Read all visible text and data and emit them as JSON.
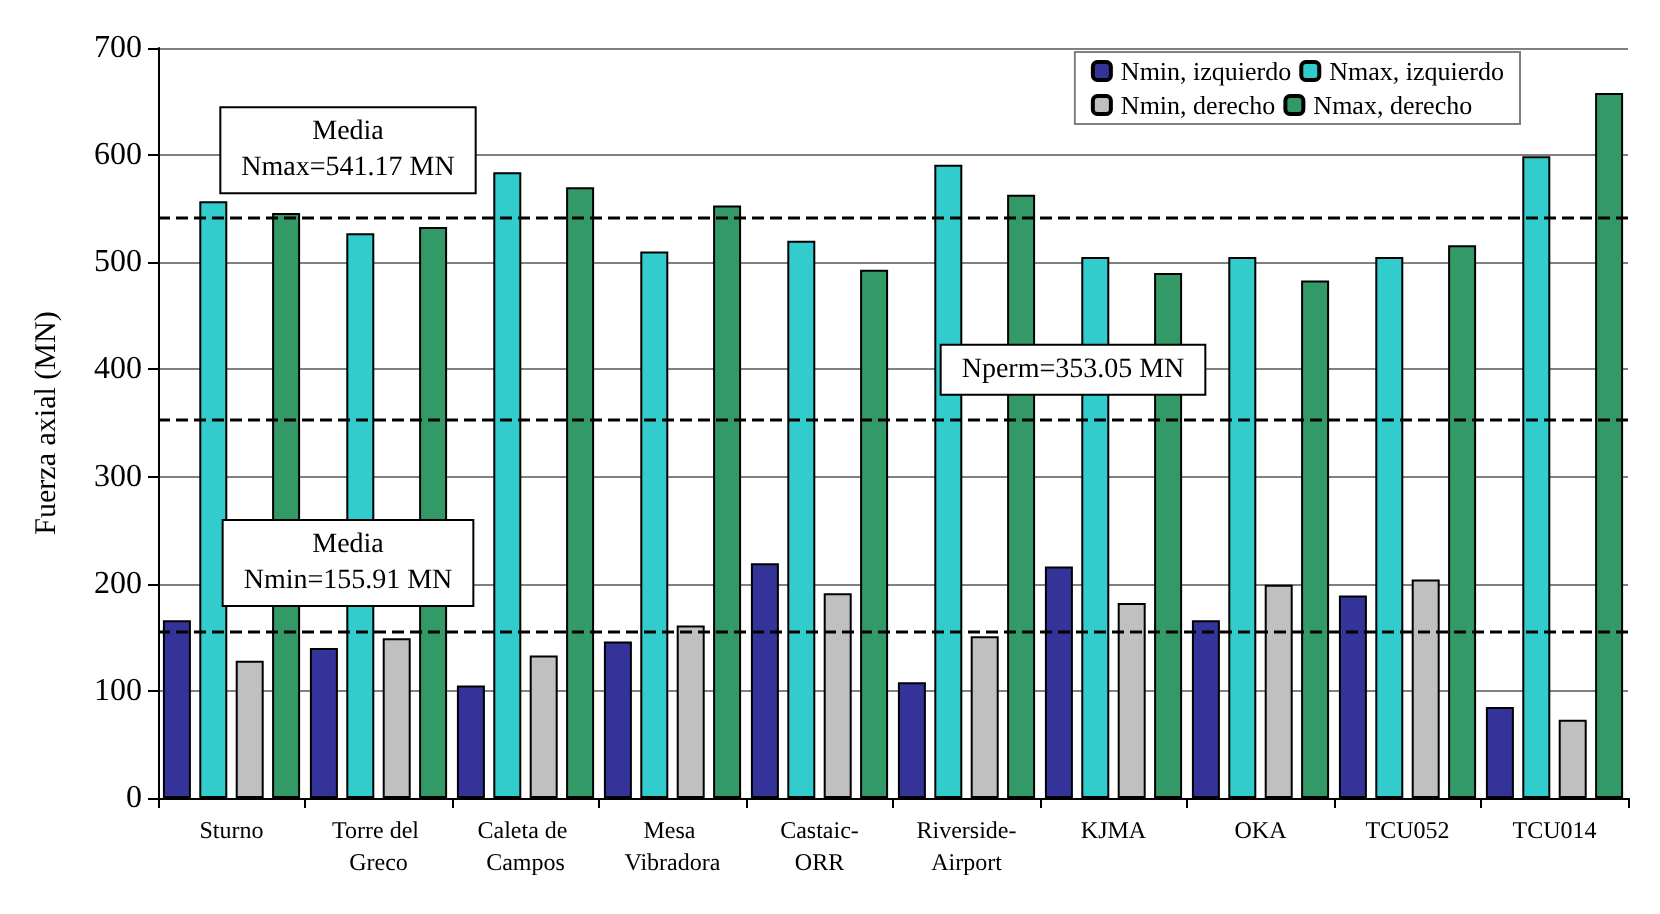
{
  "chart_data": {
    "type": "bar",
    "ylabel": "Fuerza axial (MN)",
    "categories": [
      "Sturno",
      "Torre del Greco",
      "Caleta de Campos",
      "Mesa Vibradora",
      "Castaic-ORR",
      "Riverside-Airport",
      "KJMA",
      "OKA",
      "TCU052",
      "TCU014"
    ],
    "series": [
      {
        "name": "Nmin, izquierdo",
        "color": "#333399",
        "values": [
          166,
          140,
          105,
          146,
          219,
          108,
          216,
          166,
          189,
          85
        ]
      },
      {
        "name": "Nmax, izquierdo",
        "color": "#33cccc",
        "values": [
          557,
          527,
          584,
          510,
          520,
          591,
          505,
          505,
          505,
          599
        ]
      },
      {
        "name": "Nmin, derecho",
        "color": "#c0c0c0",
        "values": [
          128,
          149,
          133,
          161,
          191,
          151,
          182,
          199,
          204,
          73
        ]
      },
      {
        "name": "Nmax, derecho",
        "color": "#339966",
        "values": [
          546,
          533,
          570,
          553,
          493,
          563,
          490,
          483,
          516,
          658
        ]
      }
    ],
    "ylim": [
      0,
      700
    ],
    "yticks": [
      0,
      100,
      200,
      300,
      400,
      500,
      600,
      700
    ],
    "grid": "y",
    "legend": "top right",
    "ref_lines": [
      {
        "axis": "y",
        "value": 541.17,
        "label": "Media\nNmax=541.17 MN",
        "line_style": "dashed",
        "color": "#000000"
      },
      {
        "axis": "y",
        "value": 353.05,
        "label": "Nperm=353.05 MN",
        "line_style": "dashed",
        "color": "#000000"
      },
      {
        "axis": "y",
        "value": 155.91,
        "label": "Media\nNmin=155.91 MN",
        "line_style": "dashed",
        "color": "#000000"
      }
    ]
  }
}
